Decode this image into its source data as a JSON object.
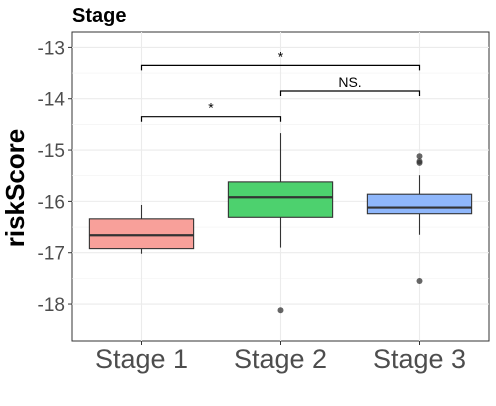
{
  "chart_data": {
    "type": "box",
    "title": "Stage",
    "xlabel": "",
    "ylabel": "riskScore",
    "ylim": [
      -18.72,
      -12.7
    ],
    "yticks": [
      -18,
      -17,
      -16,
      -15,
      -14,
      -13
    ],
    "grid": true,
    "categories": [
      "Stage 1",
      "Stage 2",
      "Stage 3"
    ],
    "boxes": [
      {
        "category": "Stage 1",
        "color": "#f8a09a",
        "min": -17.02,
        "q1": -16.92,
        "median": -16.66,
        "q3": -16.34,
        "max": -16.07,
        "outliers": []
      },
      {
        "category": "Stage 2",
        "color": "#4dd16e",
        "min": -16.9,
        "q1": -16.31,
        "median": -15.92,
        "q3": -15.62,
        "max": -14.67,
        "outliers": [
          -18.12
        ]
      },
      {
        "category": "Stage 3",
        "color": "#8fb7fb",
        "min": -16.65,
        "q1": -16.24,
        "median": -16.12,
        "q3": -15.86,
        "max": -15.49,
        "outliers": [
          -15.12,
          -15.22,
          -15.25,
          -17.55
        ]
      }
    ],
    "comparisons": [
      {
        "from": "Stage 1",
        "to": "Stage 3",
        "y": -13.35,
        "label": "*"
      },
      {
        "from": "Stage 2",
        "to": "Stage 3",
        "y": -13.85,
        "label": "NS."
      },
      {
        "from": "Stage 1",
        "to": "Stage 2",
        "y": -14.35,
        "label": "*"
      }
    ]
  }
}
